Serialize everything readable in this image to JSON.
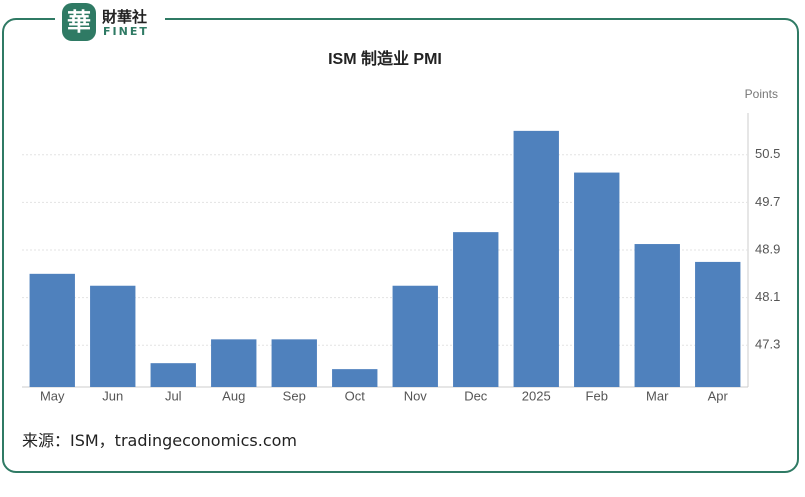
{
  "logo": {
    "mark": "華",
    "name": "財華社",
    "sub": "FINET"
  },
  "source": "来源：ISM，tradingeconomics.com",
  "chart_data": {
    "type": "bar",
    "title": "ISM 制造业 PMI",
    "y_unit": "Points",
    "categories": [
      "May",
      "Jun",
      "Jul",
      "Aug",
      "Sep",
      "Oct",
      "Nov",
      "Dec",
      "2025",
      "Feb",
      "Mar",
      "Apr"
    ],
    "values": [
      48.5,
      48.3,
      47.0,
      47.4,
      47.4,
      46.9,
      48.3,
      49.2,
      50.9,
      50.2,
      49.0,
      48.7
    ],
    "color": "#4f81bd",
    "ylim": [
      46.6,
      51.2
    ],
    "yticks": [
      47.3,
      48.1,
      48.9,
      49.7,
      50.5
    ],
    "grid": true
  }
}
